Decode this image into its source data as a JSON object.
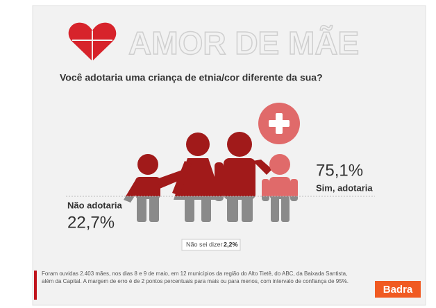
{
  "header": {
    "title": "AMOR DE MÃE",
    "question": "Você adotaria uma criança de etnia/cor diferente da sua?"
  },
  "answers": {
    "yes": {
      "label": "Sim, adotaria",
      "value": "75,1%"
    },
    "no": {
      "label": "Não adotaria",
      "value": "22,7%"
    },
    "unknown": {
      "label": "Não sei dizer",
      "value": "2,2%"
    }
  },
  "footer": {
    "note_line1": "Foram ouvidas 2.403 mães, nos dias 8 e 9 de maio, em 12 municípios da região do Alto Tietê, do ABC, da Baixada Santista,",
    "note_line2": "além da Capital. A margem de erro é de 2 pontos percentuais para mais ou para menos, com intervalo de confiança de 95%.",
    "brand": "Badra"
  }
}
